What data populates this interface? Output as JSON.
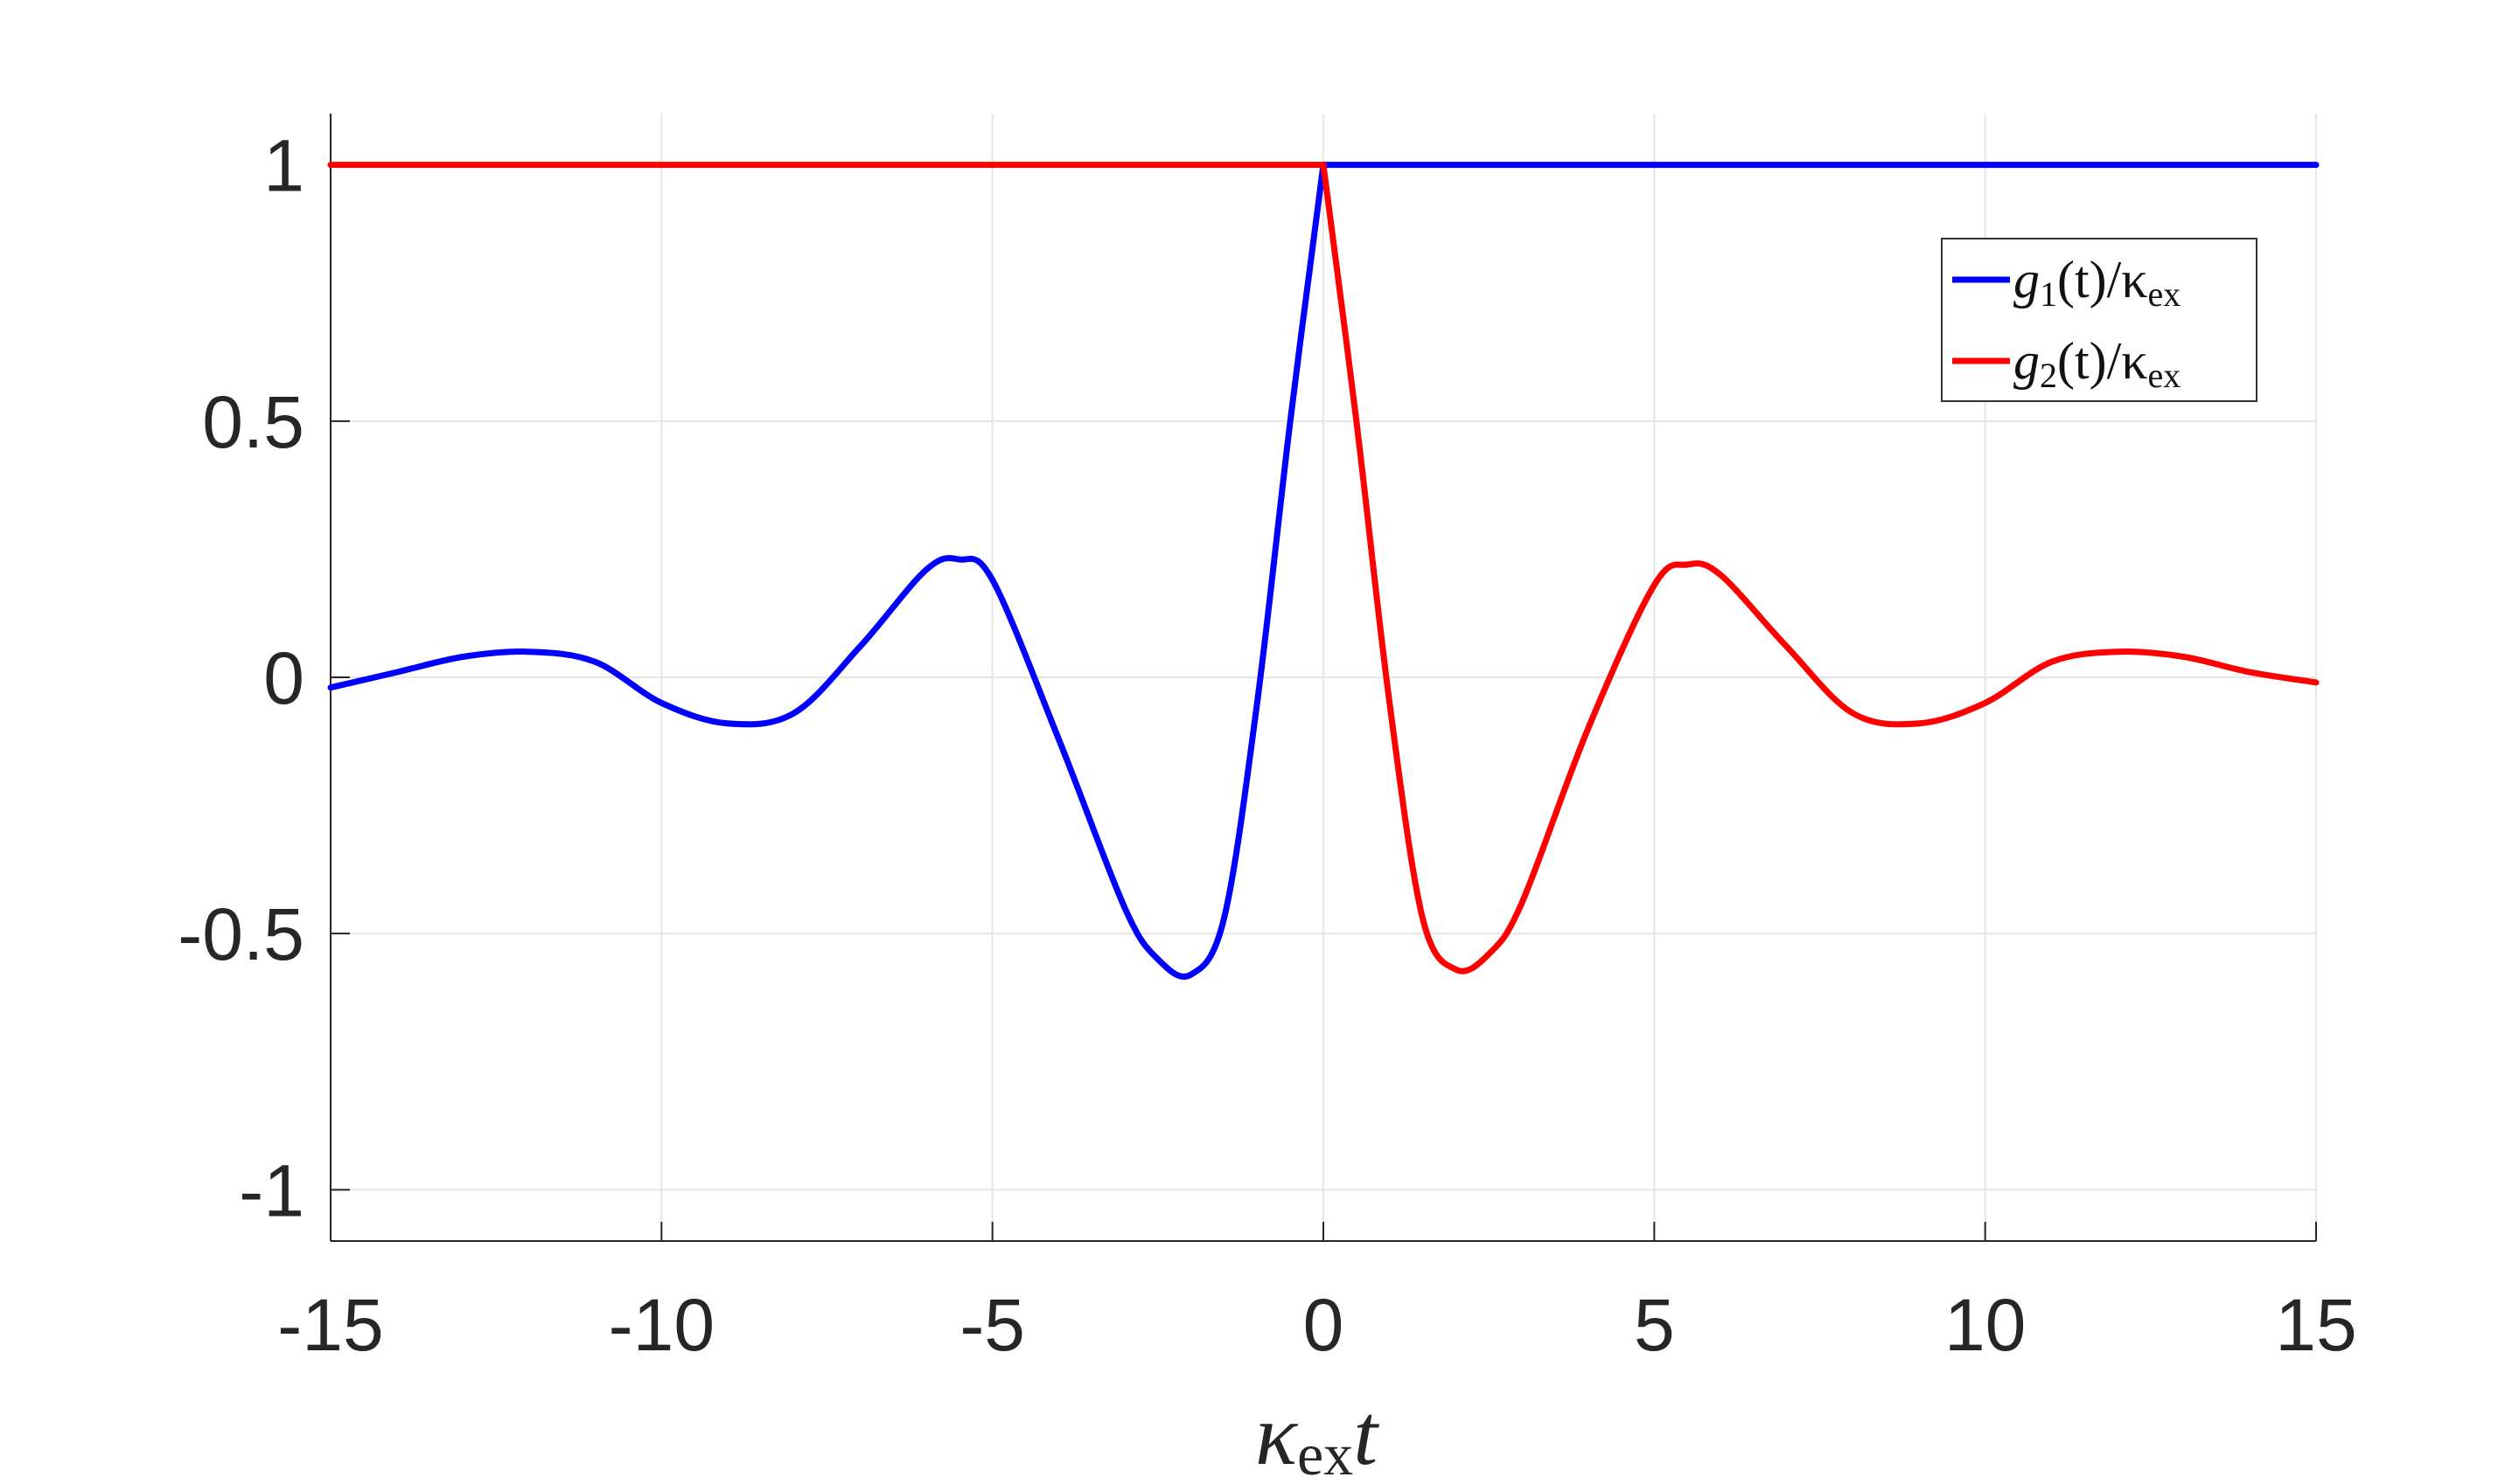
{
  "chart_data": {
    "type": "line",
    "title": "",
    "xlabel": {
      "base": "κ",
      "sub": "ex",
      "tail": "t"
    },
    "ylabel": "",
    "xlim": [
      -15,
      15
    ],
    "ylim": [
      -1.1,
      1.1
    ],
    "xticks": [
      -15,
      -10,
      -5,
      0,
      5,
      10,
      15
    ],
    "xtick_labels": [
      "-15",
      "-10",
      "-5",
      "0",
      "5",
      "10",
      "15"
    ],
    "yticks": [
      -1,
      -0.5,
      0,
      0.5,
      1
    ],
    "ytick_labels": [
      "-1",
      "-0.5",
      "0",
      "0.5",
      "1"
    ],
    "grid": true,
    "legend_position": "top-right",
    "series": [
      {
        "name": "g1(t)/κex",
        "legend": {
          "g": "g",
          "idx": "1",
          "mid": "(t)/κ",
          "sub": "ex"
        },
        "color": "#0000ff",
        "x": [
          -15,
          -14,
          -13,
          -12,
          -11,
          -10,
          -9,
          -8,
          -7,
          -6,
          -5.5,
          -5,
          -4,
          -3,
          -2.5,
          -2,
          -1.5,
          -1,
          -0.5,
          0,
          15
        ],
        "y": [
          -0.02,
          0.01,
          0.04,
          0.05,
          0.03,
          -0.05,
          -0.09,
          -0.07,
          0.06,
          0.21,
          0.23,
          0.19,
          -0.12,
          -0.45,
          -0.55,
          -0.58,
          -0.47,
          -0.05,
          0.5,
          1.0,
          1.0
        ]
      },
      {
        "name": "g2(t)/κex",
        "legend": {
          "g": "g",
          "idx": "2",
          "mid": "(t)/κ",
          "sub": "ex"
        },
        "color": "#ff0000",
        "x": [
          -15,
          0,
          0.5,
          1,
          1.5,
          2,
          2.5,
          3,
          4,
          5,
          5.5,
          6,
          7,
          8,
          9,
          10,
          11,
          12,
          13,
          14,
          15
        ],
        "y": [
          1.0,
          1.0,
          0.5,
          -0.05,
          -0.47,
          -0.57,
          -0.54,
          -0.44,
          -0.1,
          0.18,
          0.22,
          0.2,
          0.06,
          -0.07,
          -0.09,
          -0.05,
          0.03,
          0.05,
          0.04,
          0.01,
          -0.01
        ]
      }
    ]
  }
}
